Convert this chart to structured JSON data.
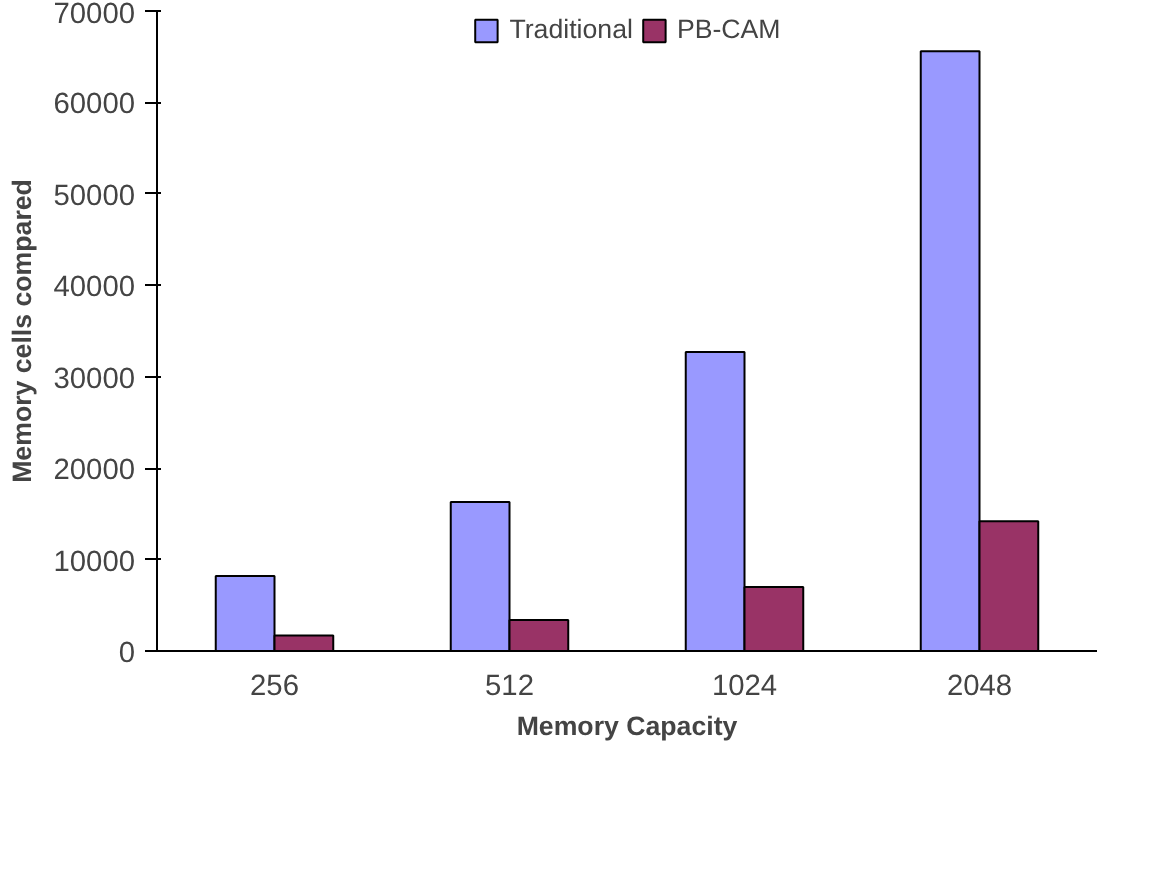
{
  "chart_data": {
    "type": "bar",
    "xlabel": "Memory Capacity",
    "ylabel": "Memory cells compared",
    "categories": [
      "256",
      "512",
      "1024",
      "2048"
    ],
    "series": [
      {
        "name": "Traditional",
        "color": "#9999ff",
        "values": [
          8200,
          16300,
          32700,
          65600
        ]
      },
      {
        "name": "PB-CAM",
        "color": "#993366",
        "values": [
          1700,
          3400,
          7000,
          14200
        ]
      }
    ],
    "ylim": [
      0,
      70000
    ],
    "yticks": [
      0,
      10000,
      20000,
      30000,
      40000,
      50000,
      60000,
      70000
    ],
    "grid": false,
    "legend": "top"
  }
}
